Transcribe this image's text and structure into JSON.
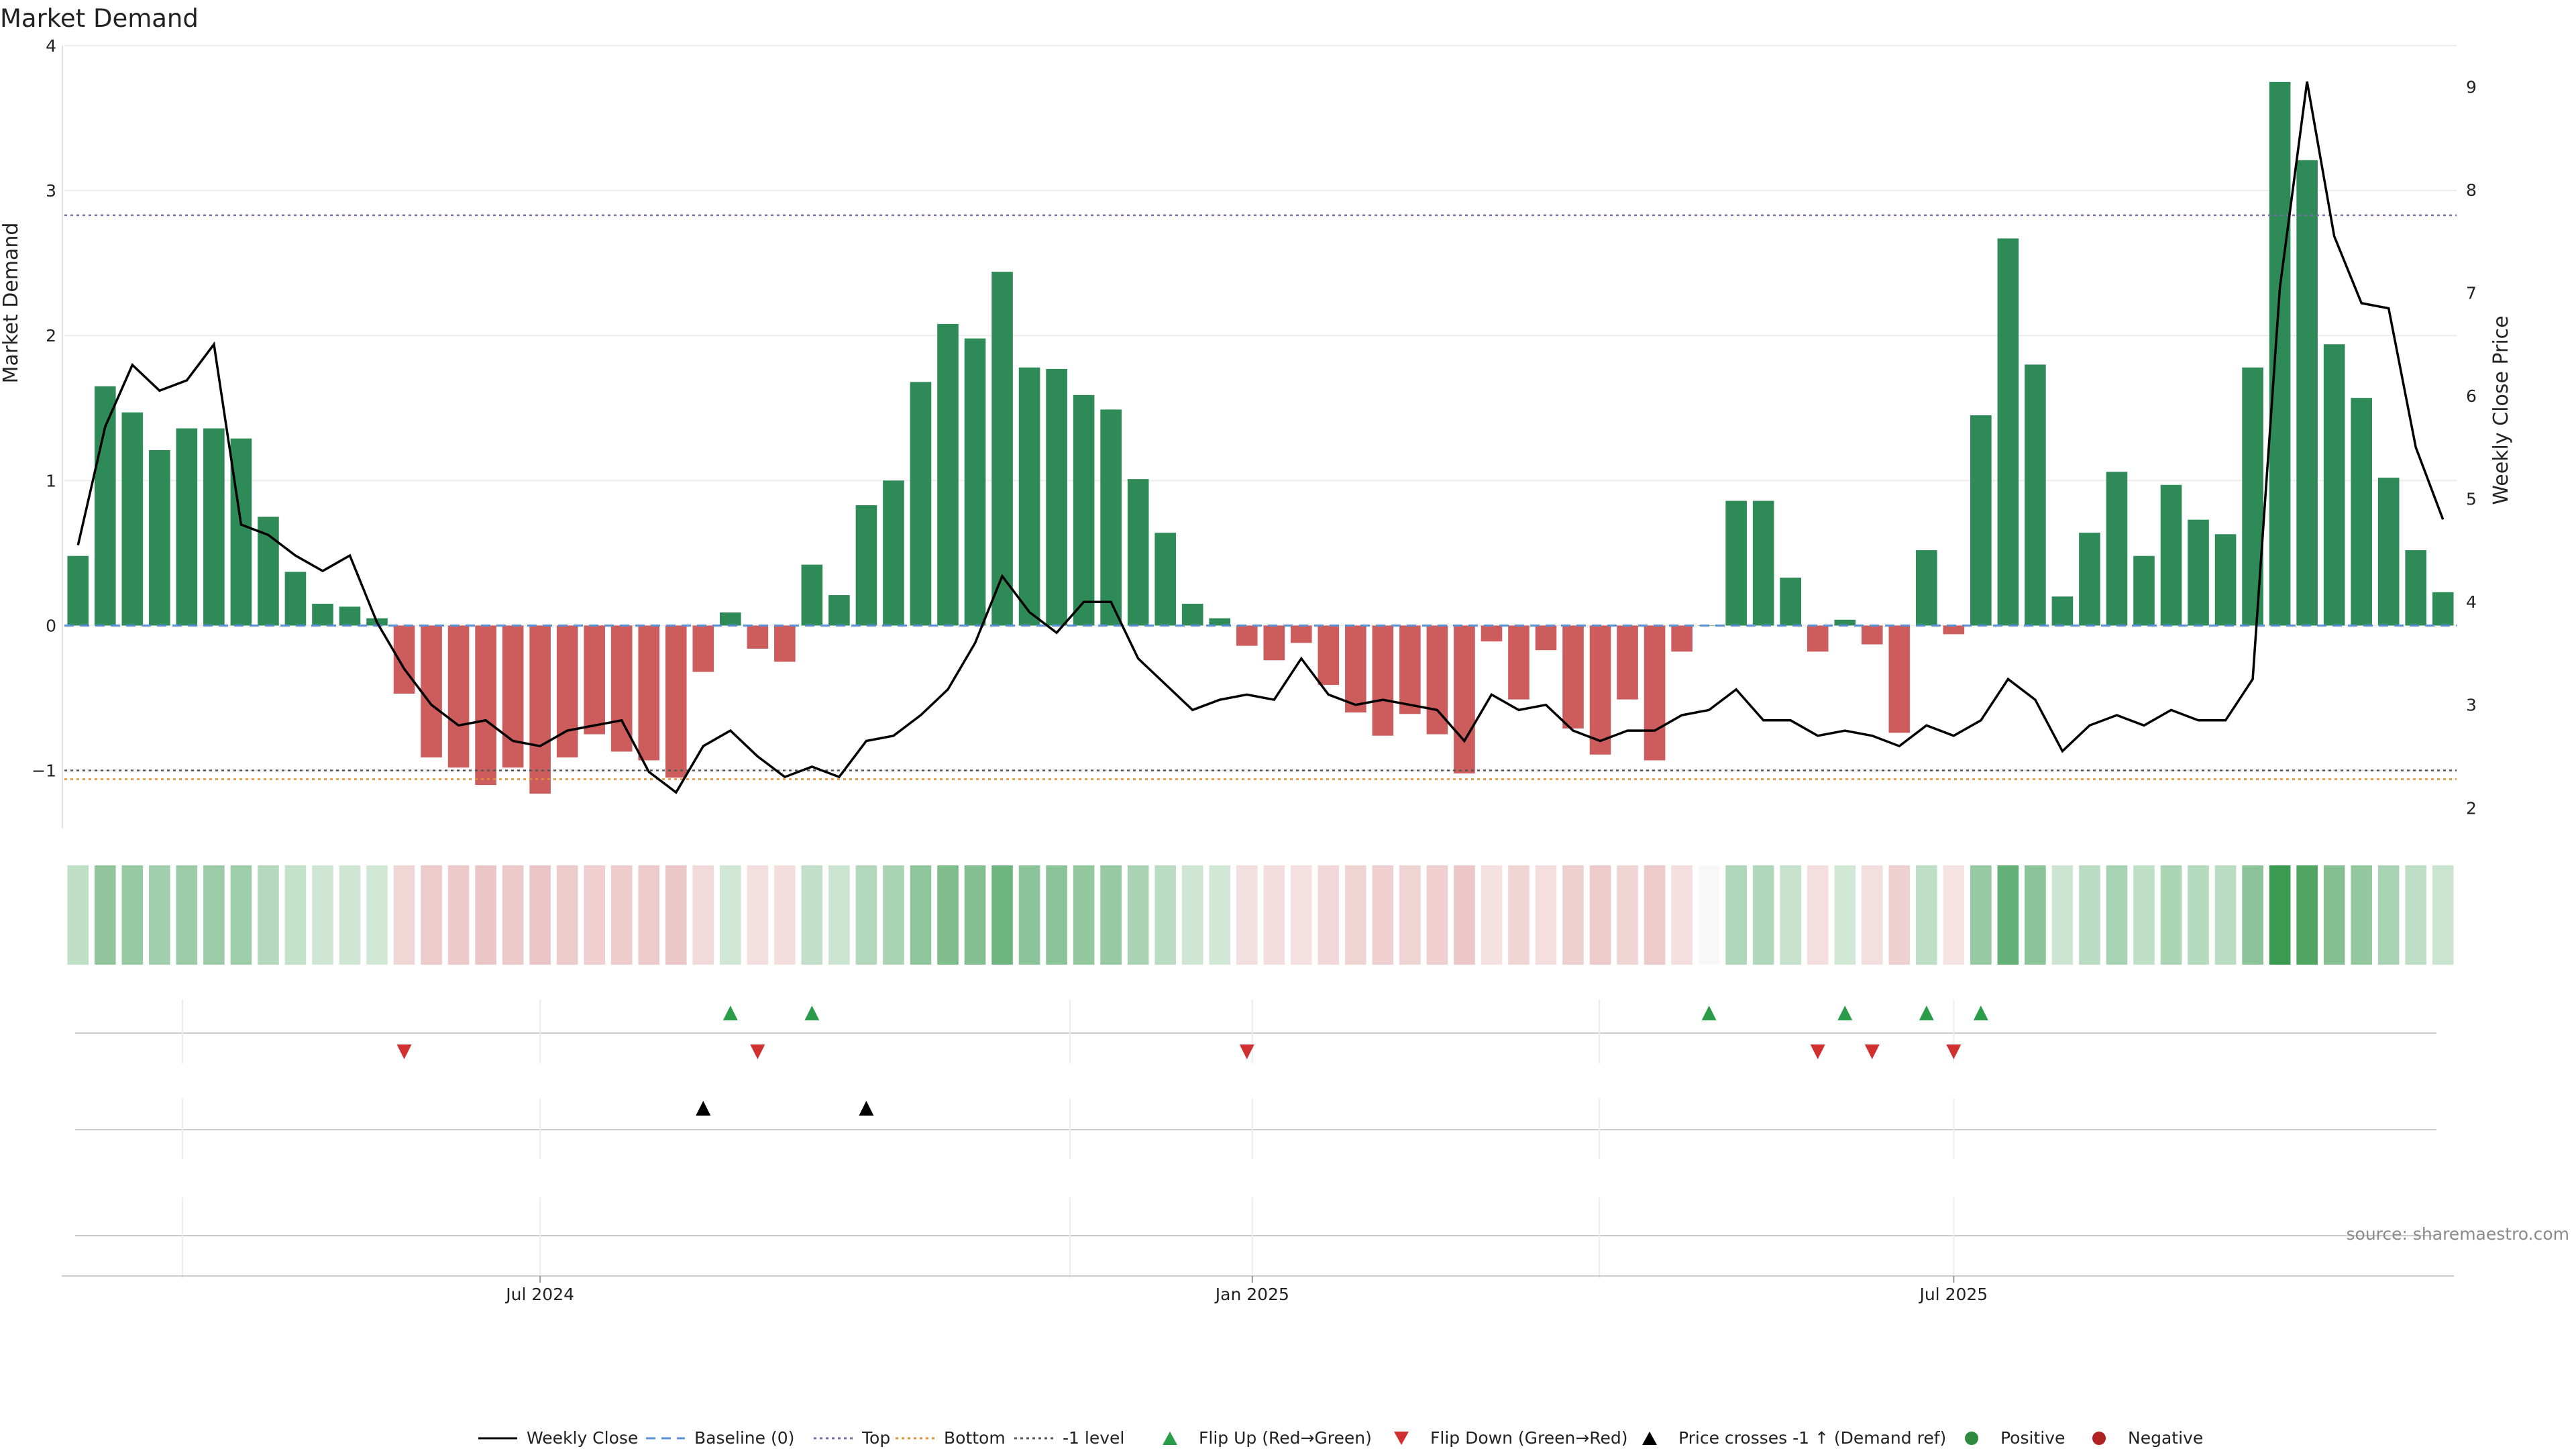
{
  "chart_data": {
    "type": "bar",
    "title": "Market Demand",
    "ylabel": "Market Demand",
    "y2label": "Weekly Close Price",
    "ylim": [
      -1.4,
      4.0
    ],
    "y2lim": [
      1.8,
      9.4
    ],
    "yticks": [
      -1,
      0,
      1,
      2,
      3,
      4
    ],
    "y2ticks": [
      2,
      3,
      4,
      5,
      6,
      7,
      8,
      9
    ],
    "xticks": [
      {
        "label": "Jul 2024",
        "index": 17
      },
      {
        "label": "Jan 2025",
        "index": 43.2
      },
      {
        "label": "Jul 2025",
        "index": 69
      }
    ],
    "levels": {
      "baseline": 0,
      "top": 2.83,
      "bottom": -1.06,
      "minus_one": -1.0
    },
    "series": [
      {
        "name": "Market Demand",
        "values": [
          0.48,
          1.65,
          1.47,
          1.21,
          1.36,
          1.36,
          1.29,
          0.75,
          0.37,
          0.15,
          0.13,
          0.05,
          -0.47,
          -0.91,
          -0.98,
          -1.1,
          -0.98,
          -1.16,
          -0.91,
          -0.75,
          -0.87,
          -0.93,
          -1.05,
          -0.32,
          0.09,
          -0.16,
          -0.25,
          0.42,
          0.21,
          0.83,
          1.0,
          1.68,
          2.08,
          1.98,
          2.44,
          1.78,
          1.77,
          1.59,
          1.49,
          1.01,
          0.64,
          0.15,
          0.05,
          -0.14,
          -0.24,
          -0.12,
          -0.41,
          -0.6,
          -0.76,
          -0.61,
          -0.75,
          -1.02,
          -0.11,
          -0.51,
          -0.17,
          -0.71,
          -0.89,
          -0.51,
          -0.93,
          -0.18,
          0,
          0.86,
          0.86,
          0.33,
          -0.18,
          0.04,
          -0.13,
          -0.74,
          0.52,
          -0.06,
          1.45,
          2.67,
          1.8,
          0.2,
          0.64,
          1.06,
          0.48,
          0.97,
          0.73,
          0.63,
          1.78,
          3.75,
          3.21,
          1.94,
          1.57,
          1.02,
          0.52,
          0.23
        ]
      },
      {
        "name": "Weekly Close",
        "values": [
          4.55,
          5.7,
          6.3,
          6.05,
          6.15,
          6.5,
          4.75,
          4.65,
          4.45,
          4.3,
          4.45,
          3.8,
          3.35,
          3.0,
          2.8,
          2.85,
          2.65,
          2.6,
          2.75,
          2.8,
          2.85,
          2.35,
          2.15,
          2.6,
          2.75,
          2.5,
          2.3,
          2.4,
          2.3,
          2.65,
          2.7,
          2.9,
          3.15,
          3.6,
          4.25,
          3.9,
          3.7,
          4.0,
          4.0,
          3.45,
          3.2,
          2.95,
          3.05,
          3.1,
          3.05,
          3.45,
          3.1,
          3.0,
          3.05,
          3.0,
          2.95,
          2.65,
          3.1,
          2.95,
          3.0,
          2.75,
          2.65,
          2.75,
          2.75,
          2.9,
          2.95,
          3.15,
          2.85,
          2.85,
          2.7,
          2.75,
          2.7,
          2.6,
          2.8,
          2.7,
          2.85,
          3.25,
          3.05,
          2.55,
          2.8,
          2.9,
          2.8,
          2.95,
          2.85,
          2.85,
          3.25,
          7.05,
          9.05,
          7.55,
          6.9,
          6.85,
          5.5,
          4.8
        ]
      }
    ],
    "events": {
      "flip_up_indices": [
        24,
        27,
        60,
        65,
        68,
        70
      ],
      "flip_down_indices": [
        12,
        25,
        43,
        64,
        66,
        69
      ],
      "price_cross_indices": [
        23,
        29
      ]
    },
    "legend": [
      {
        "label": "Weekly Close",
        "symbol": "solid-line",
        "color": "#000000"
      },
      {
        "label": "Baseline (0)",
        "symbol": "dashed-line",
        "color": "#5b8fd6"
      },
      {
        "label": "Top",
        "symbol": "dotted-line",
        "color": "#7b68b0"
      },
      {
        "label": "Bottom",
        "symbol": "dotted-line",
        "color": "#e0913a"
      },
      {
        "label": "-1 level",
        "symbol": "dotted-line",
        "color": "#555555"
      },
      {
        "label": "Flip Up (Red→Green)",
        "symbol": "triangle-up",
        "color": "#2a9c4a"
      },
      {
        "label": "Flip Down (Green→Red)",
        "symbol": "triangle-down",
        "color": "#d03030"
      },
      {
        "label": "Price crosses -1 ↑ (Demand ref)",
        "symbol": "triangle-up",
        "color": "#000000"
      },
      {
        "label": "Positive",
        "symbol": "circle",
        "color": "#2e8b3e"
      },
      {
        "label": "Negative",
        "symbol": "circle",
        "color": "#b22222"
      }
    ],
    "legend_position": "bottom-center",
    "colors": {
      "positive_bar": "#2e8b57",
      "negative_bar": "#cd5c5c",
      "heat_positive": "#3a9a50",
      "heat_negative": "#d48080"
    },
    "source": "source: sharemaestro.com"
  }
}
